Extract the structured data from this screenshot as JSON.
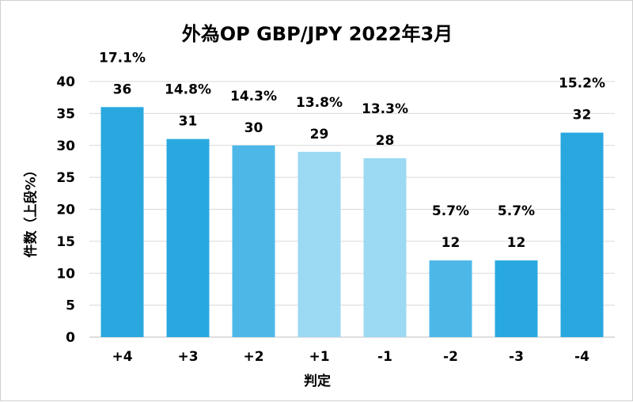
{
  "chart_data": {
    "type": "bar",
    "title": "外為OP GBP/JPY 2022年3月",
    "xlabel": "判定",
    "ylabel": "件数（上段%）",
    "categories": [
      "+4",
      "+3",
      "+2",
      "+1",
      "-1",
      "-2",
      "-3",
      "-4"
    ],
    "values": [
      36,
      31,
      30,
      29,
      28,
      12,
      12,
      32
    ],
    "percent_labels": [
      "17.1%",
      "14.8%",
      "14.3%",
      "13.8%",
      "13.3%",
      "5.7%",
      "5.7%",
      "15.2%"
    ],
    "bar_colors": [
      "#29a8e0",
      "#29a8e0",
      "#4db8e8",
      "#9cd9f2",
      "#9cd9f2",
      "#4db8e8",
      "#29a8e0",
      "#29a8e0"
    ],
    "ylim": [
      0,
      40
    ],
    "yticks": [
      0,
      5,
      10,
      15,
      20,
      25,
      30,
      35,
      40
    ],
    "grid": true,
    "legend": false
  }
}
